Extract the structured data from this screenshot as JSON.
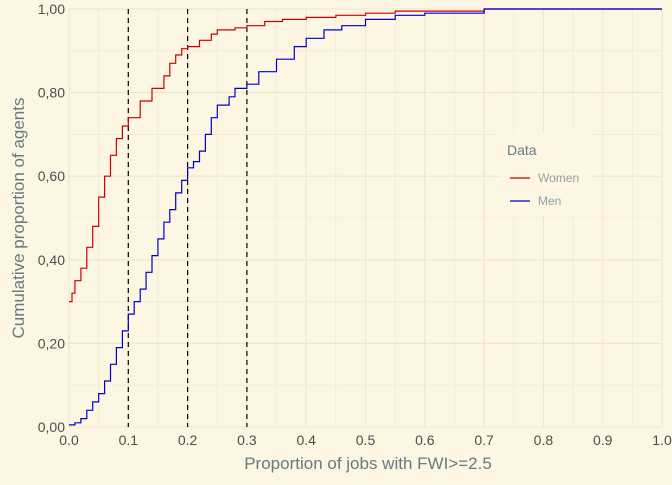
{
  "chart_data": {
    "type": "line",
    "title": "",
    "xlabel": "Proportion of jobs with FWI>=2.5",
    "ylabel": "Cumulative proportion of agents",
    "xlim": [
      0,
      1
    ],
    "ylim": [
      0,
      1
    ],
    "x_ticks": [
      "0.0",
      "0.1",
      "0.2",
      "0.3",
      "0.4",
      "0.5",
      "0.6",
      "0.7",
      "0.8",
      "0.9",
      "1.0"
    ],
    "y_ticks": [
      "0,00",
      "0,20",
      "0,40",
      "0,60",
      "0,80",
      "1,00"
    ],
    "grid": true,
    "legend": {
      "title": "Data",
      "position": "right"
    },
    "vlines": [
      0.1,
      0.2,
      0.3
    ],
    "colors": {
      "background": "#fdf6e3",
      "grid": "#efe5cd",
      "women": "#cc0000",
      "men": "#0000cc",
      "axis_text": "#657b83"
    },
    "series": [
      {
        "name": "Women",
        "points": [
          [
            0,
            0.3
          ],
          [
            0.005,
            0.32
          ],
          [
            0.01,
            0.35
          ],
          [
            0.02,
            0.38
          ],
          [
            0.03,
            0.43
          ],
          [
            0.04,
            0.48
          ],
          [
            0.05,
            0.55
          ],
          [
            0.06,
            0.6
          ],
          [
            0.07,
            0.65
          ],
          [
            0.08,
            0.69
          ],
          [
            0.09,
            0.72
          ],
          [
            0.1,
            0.74
          ],
          [
            0.12,
            0.78
          ],
          [
            0.14,
            0.81
          ],
          [
            0.16,
            0.84
          ],
          [
            0.17,
            0.87
          ],
          [
            0.18,
            0.89
          ],
          [
            0.19,
            0.905
          ],
          [
            0.2,
            0.91
          ],
          [
            0.22,
            0.925
          ],
          [
            0.24,
            0.94
          ],
          [
            0.25,
            0.95
          ],
          [
            0.28,
            0.955
          ],
          [
            0.3,
            0.96
          ],
          [
            0.33,
            0.97
          ],
          [
            0.36,
            0.975
          ],
          [
            0.4,
            0.98
          ],
          [
            0.45,
            0.985
          ],
          [
            0.5,
            0.99
          ],
          [
            0.55,
            0.995
          ],
          [
            0.7,
            1.0
          ],
          [
            1.0,
            1.0
          ]
        ]
      },
      {
        "name": "Men",
        "points": [
          [
            0,
            0.005
          ],
          [
            0.01,
            0.01
          ],
          [
            0.02,
            0.02
          ],
          [
            0.03,
            0.04
          ],
          [
            0.04,
            0.06
          ],
          [
            0.05,
            0.08
          ],
          [
            0.06,
            0.11
          ],
          [
            0.07,
            0.15
          ],
          [
            0.08,
            0.19
          ],
          [
            0.09,
            0.23
          ],
          [
            0.1,
            0.27
          ],
          [
            0.11,
            0.3
          ],
          [
            0.12,
            0.33
          ],
          [
            0.13,
            0.37
          ],
          [
            0.14,
            0.41
          ],
          [
            0.15,
            0.45
          ],
          [
            0.16,
            0.49
          ],
          [
            0.17,
            0.52
          ],
          [
            0.18,
            0.56
          ],
          [
            0.19,
            0.59
          ],
          [
            0.2,
            0.62
          ],
          [
            0.21,
            0.635
          ],
          [
            0.22,
            0.66
          ],
          [
            0.23,
            0.7
          ],
          [
            0.24,
            0.74
          ],
          [
            0.25,
            0.77
          ],
          [
            0.27,
            0.79
          ],
          [
            0.28,
            0.81
          ],
          [
            0.3,
            0.82
          ],
          [
            0.32,
            0.85
          ],
          [
            0.35,
            0.88
          ],
          [
            0.38,
            0.91
          ],
          [
            0.4,
            0.93
          ],
          [
            0.43,
            0.95
          ],
          [
            0.46,
            0.96
          ],
          [
            0.5,
            0.975
          ],
          [
            0.55,
            0.985
          ],
          [
            0.6,
            0.99
          ],
          [
            0.7,
            1.0
          ],
          [
            1.0,
            1.0
          ]
        ]
      }
    ]
  }
}
